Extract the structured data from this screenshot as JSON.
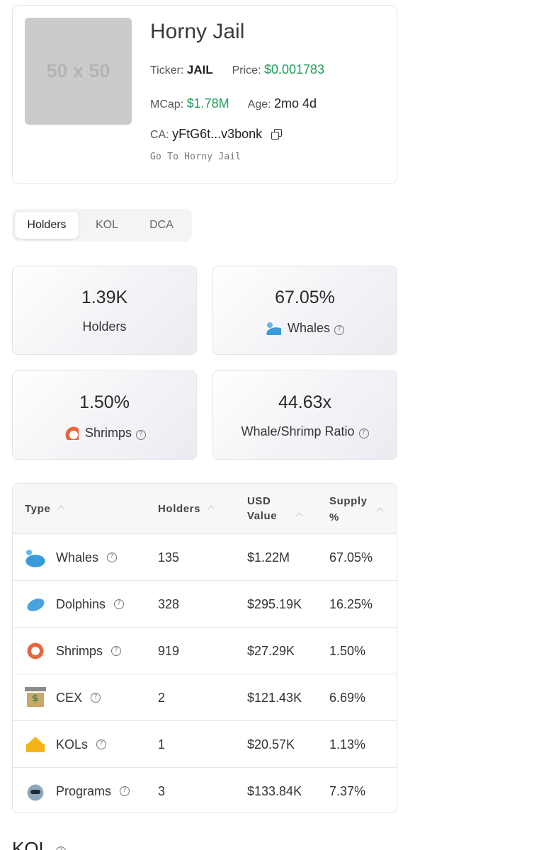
{
  "token": {
    "placeholder_image_text": "50 x 50",
    "name": "Horny Jail",
    "ticker_label": "Ticker:",
    "ticker": "JAIL",
    "price_label": "Price:",
    "price": "$0.001783",
    "mcap_label": "MCap:",
    "mcap": "$1.78M",
    "age_label": "Age:",
    "age": "2mo 4d",
    "ca_label": "CA:",
    "ca": "yFtG6t...v3bonk",
    "goto_link": "Go To Horny Jail"
  },
  "tabs": [
    "Holders",
    "KOL",
    "DCA"
  ],
  "active_tab": "Holders",
  "stats": {
    "holders": {
      "value": "1.39K",
      "label": "Holders"
    },
    "whales": {
      "value": "67.05%",
      "label": "Whales",
      "icon": "whale-icon"
    },
    "shrimps": {
      "value": "1.50%",
      "label": "Shrimps",
      "icon": "shrimp-icon"
    },
    "ratio": {
      "value": "44.63x",
      "label": "Whale/Shrimp Ratio"
    }
  },
  "table": {
    "headers": {
      "type": "Type",
      "holders": "Holders",
      "usd_line1": "USD",
      "usd_line2": "Value",
      "supply_line1": "Supply",
      "supply_line2": "%"
    },
    "rows": [
      {
        "icon": "whale-icon",
        "type": "Whales",
        "holders": "135",
        "usd": "$1.22M",
        "supply": "67.05%"
      },
      {
        "icon": "dolphin-icon",
        "type": "Dolphins",
        "holders": "328",
        "usd": "$295.19K",
        "supply": "16.25%"
      },
      {
        "icon": "shrimp-icon",
        "type": "Shrimps",
        "holders": "919",
        "usd": "$27.29K",
        "supply": "1.50%"
      },
      {
        "icon": "bank-icon",
        "type": "CEX",
        "holders": "2",
        "usd": "$121.43K",
        "supply": "6.69%"
      },
      {
        "icon": "crown-icon",
        "type": "KOLs",
        "holders": "1",
        "usd": "$20.57K",
        "supply": "1.13%"
      },
      {
        "icon": "robot-icon",
        "type": "Programs",
        "holders": "3",
        "usd": "$133.84K",
        "supply": "7.37%"
      }
    ]
  },
  "section_heading": "KOL",
  "colors": {
    "positive": "#1e9e5a",
    "placeholder": "#cbcbcb"
  }
}
